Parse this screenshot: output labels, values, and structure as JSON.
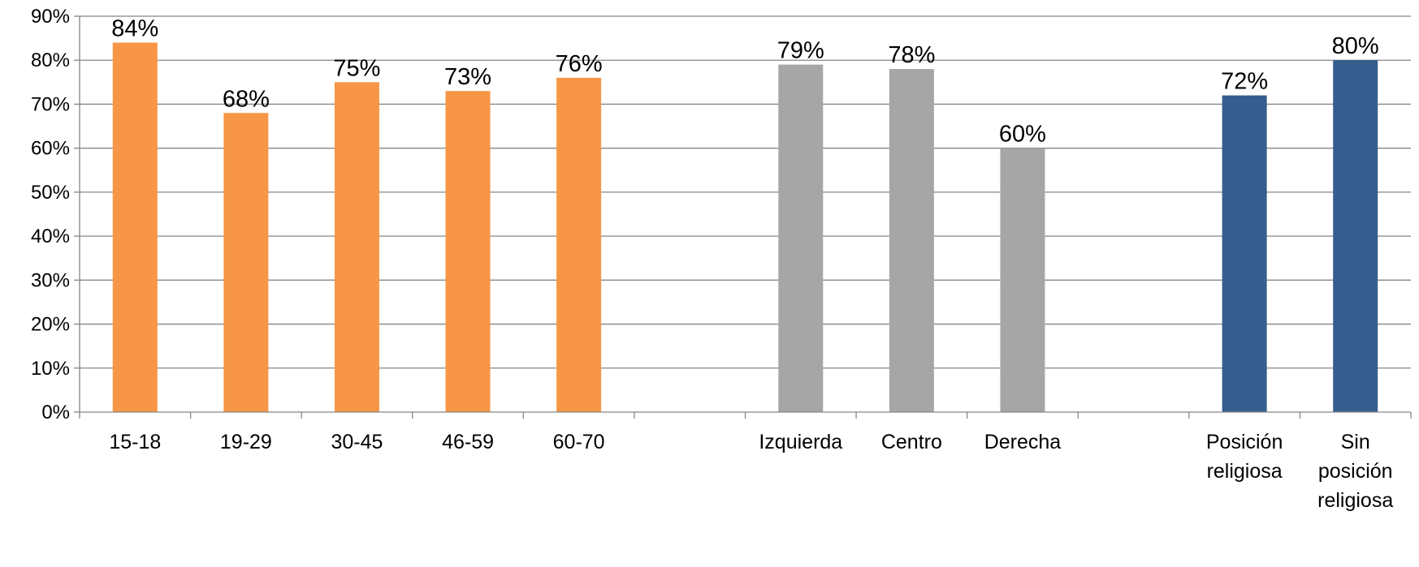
{
  "chart_data": {
    "type": "bar",
    "title": "",
    "xlabel": "",
    "ylabel": "",
    "ylim": [
      0,
      90
    ],
    "yticks": [
      "0%",
      "10%",
      "20%",
      "30%",
      "40%",
      "50%",
      "60%",
      "70%",
      "80%",
      "90%"
    ],
    "grid": true,
    "legend": "none",
    "categories": [
      "15-18",
      "19-29",
      "30-45",
      "46-59",
      "60-70",
      "",
      "Izquierda",
      "Centro",
      "Derecha",
      "",
      "Posición religiosa",
      "Sin posición religiosa"
    ],
    "category_lines": [
      [
        "15-18"
      ],
      [
        "19-29"
      ],
      [
        "30-45"
      ],
      [
        "46-59"
      ],
      [
        "60-70"
      ],
      [],
      [
        "Izquierda"
      ],
      [
        "Centro"
      ],
      [
        "Derecha"
      ],
      [],
      [
        "Posición",
        "religiosa"
      ],
      [
        "Sin",
        "posición",
        "religiosa"
      ]
    ],
    "values": [
      84,
      68,
      75,
      73,
      76,
      null,
      79,
      78,
      60,
      null,
      72,
      80
    ],
    "data_labels": [
      "84%",
      "68%",
      "75%",
      "73%",
      "76%",
      "",
      "79%",
      "78%",
      "60%",
      "",
      "72%",
      "80%"
    ],
    "colors": [
      "#F79646",
      "#F79646",
      "#F79646",
      "#F79646",
      "#F79646",
      "",
      "#A6A6A6",
      "#A6A6A6",
      "#A6A6A6",
      "",
      "#355E8E",
      "#355E8E"
    ]
  }
}
